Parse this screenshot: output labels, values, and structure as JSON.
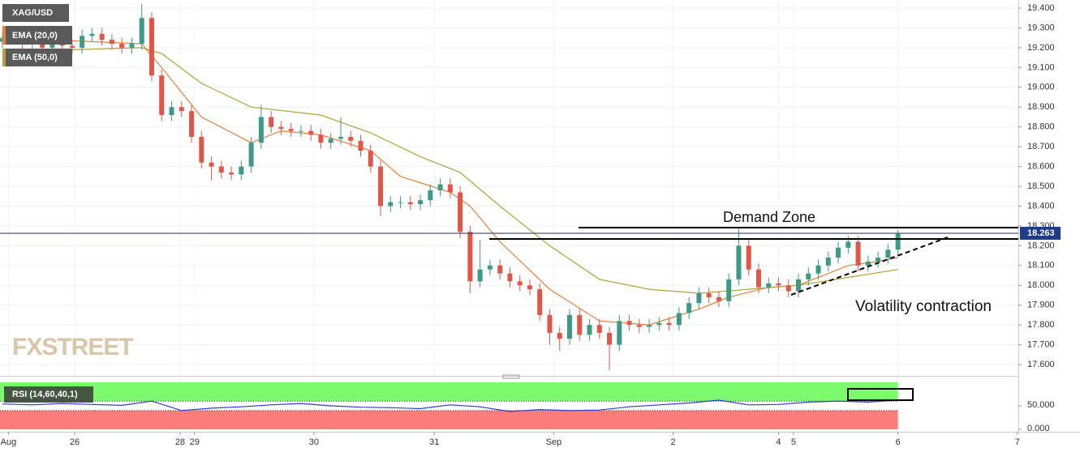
{
  "chart_data": [
    {
      "type": "candlestick",
      "title": "XAG/USD",
      "x": [
        0,
        1,
        2,
        3,
        4,
        5,
        6,
        7,
        8,
        9,
        10,
        11,
        12,
        13,
        14,
        15,
        16,
        17,
        18,
        19,
        20,
        21,
        22,
        23,
        24,
        25,
        26,
        27,
        28,
        29,
        30,
        31,
        32,
        33,
        34,
        35,
        36,
        37,
        38,
        39,
        40,
        41,
        42,
        43,
        44,
        45,
        46,
        47,
        48,
        49,
        50,
        51,
        52,
        53,
        54,
        55,
        56,
        57,
        58,
        59,
        60,
        61,
        62,
        63,
        64,
        65,
        66,
        67,
        68,
        69,
        70,
        71,
        72,
        73,
        74,
        75,
        76,
        77,
        78,
        79,
        80,
        81,
        82,
        83,
        84,
        85,
        86,
        87,
        88,
        89,
        90
      ],
      "open": [
        19.23,
        19.25,
        19.28,
        19.22,
        19.24,
        19.2,
        19.23,
        19.21,
        19.2,
        19.26,
        19.27,
        19.24,
        19.22,
        19.2,
        19.22,
        19.35,
        19.06,
        18.86,
        18.9,
        18.88,
        18.75,
        18.62,
        18.6,
        18.57,
        18.56,
        18.6,
        18.72,
        18.85,
        18.8,
        18.79,
        18.78,
        18.78,
        18.76,
        18.72,
        18.74,
        18.75,
        18.73,
        18.68,
        18.6,
        18.4,
        18.42,
        18.42,
        18.41,
        18.43,
        18.48,
        18.51,
        18.47,
        18.27,
        18.02,
        18.08,
        18.1,
        18.06,
        18.02,
        18.0,
        17.98,
        17.85,
        17.76,
        17.73,
        17.85,
        17.75,
        17.8,
        17.76,
        17.7,
        17.82,
        17.8,
        17.79,
        17.8,
        17.81,
        17.8,
        17.86,
        17.91,
        17.96,
        17.94,
        17.92,
        18.03,
        18.2,
        18.08,
        17.99,
        18.01,
        18.0,
        17.97,
        18.03,
        18.06,
        18.1,
        18.14,
        18.19,
        18.22,
        18.1,
        18.12,
        18.14,
        18.18
      ],
      "high": [
        19.28,
        19.31,
        19.31,
        19.27,
        19.27,
        19.26,
        19.26,
        19.24,
        19.29,
        19.3,
        19.3,
        19.27,
        19.25,
        19.25,
        19.42,
        19.38,
        19.09,
        18.93,
        18.93,
        18.91,
        18.78,
        18.65,
        18.63,
        18.6,
        18.63,
        18.75,
        18.91,
        18.88,
        18.83,
        18.82,
        18.81,
        18.81,
        18.79,
        18.77,
        18.85,
        18.78,
        18.76,
        18.71,
        18.63,
        18.45,
        18.45,
        18.45,
        18.46,
        18.51,
        18.54,
        18.54,
        18.5,
        18.3,
        18.23,
        18.13,
        18.13,
        18.09,
        18.05,
        18.03,
        18.01,
        17.88,
        17.79,
        17.88,
        17.88,
        17.83,
        17.83,
        17.79,
        17.85,
        17.85,
        17.83,
        17.83,
        17.84,
        17.84,
        17.89,
        17.94,
        17.99,
        17.99,
        17.97,
        18.06,
        18.29,
        18.23,
        18.11,
        18.04,
        18.04,
        18.03,
        18.06,
        18.09,
        18.13,
        18.17,
        18.22,
        18.25,
        18.25,
        18.15,
        18.17,
        18.21,
        18.28
      ],
      "low": [
        19.2,
        19.22,
        19.19,
        19.19,
        19.17,
        19.17,
        19.18,
        19.17,
        19.17,
        19.23,
        19.21,
        19.19,
        19.17,
        19.17,
        19.19,
        19.03,
        18.83,
        18.83,
        18.85,
        18.72,
        18.59,
        18.53,
        18.54,
        18.53,
        18.53,
        18.57,
        18.69,
        18.77,
        18.76,
        18.75,
        18.75,
        18.73,
        18.69,
        18.69,
        18.71,
        18.7,
        18.65,
        18.57,
        18.35,
        18.37,
        18.39,
        18.38,
        18.38,
        18.4,
        18.45,
        18.44,
        18.24,
        17.96,
        17.99,
        18.05,
        18.03,
        17.99,
        17.97,
        17.95,
        17.82,
        17.7,
        17.67,
        17.7,
        17.72,
        17.72,
        17.73,
        17.57,
        17.67,
        17.77,
        17.76,
        17.76,
        17.77,
        17.77,
        17.77,
        17.83,
        17.88,
        17.91,
        17.89,
        17.89,
        18.0,
        18.05,
        17.96,
        17.96,
        17.97,
        17.94,
        17.94,
        18.0,
        18.03,
        18.07,
        18.11,
        18.16,
        18.07,
        18.07,
        18.09,
        18.11,
        18.15
      ],
      "close": [
        19.25,
        19.28,
        19.22,
        19.24,
        19.2,
        19.23,
        19.21,
        19.2,
        19.26,
        19.27,
        19.24,
        19.22,
        19.2,
        19.22,
        19.35,
        19.06,
        18.86,
        18.9,
        18.88,
        18.75,
        18.62,
        18.6,
        18.57,
        18.56,
        18.6,
        18.72,
        18.85,
        18.8,
        18.79,
        18.78,
        18.78,
        18.76,
        18.72,
        18.74,
        18.75,
        18.73,
        18.68,
        18.6,
        18.4,
        18.42,
        18.42,
        18.41,
        18.43,
        18.48,
        18.51,
        18.47,
        18.27,
        18.02,
        18.08,
        18.1,
        18.06,
        18.02,
        18.0,
        17.98,
        17.85,
        17.76,
        17.73,
        17.85,
        17.75,
        17.8,
        17.76,
        17.7,
        17.82,
        17.8,
        17.79,
        17.8,
        17.81,
        17.8,
        17.86,
        17.91,
        17.96,
        17.94,
        17.92,
        18.03,
        18.2,
        18.08,
        17.99,
        18.01,
        18.0,
        17.97,
        18.03,
        18.06,
        18.1,
        18.14,
        18.19,
        18.22,
        18.1,
        18.12,
        18.14,
        18.18,
        18.26
      ],
      "up_color": "#3d9a85",
      "down_color": "#e0574a",
      "series": [
        {
          "name": "EMA (20,0)",
          "color": "#e8803a",
          "x": [
            0,
            14,
            16,
            20,
            25,
            28,
            32,
            37,
            40,
            45,
            47,
            50,
            55,
            60,
            65,
            70,
            73,
            77,
            80,
            85,
            88,
            90
          ],
          "values": [
            19.25,
            19.22,
            19.1,
            18.85,
            18.72,
            18.78,
            18.76,
            18.68,
            18.55,
            18.47,
            18.4,
            18.22,
            17.98,
            17.82,
            17.8,
            17.88,
            17.94,
            17.99,
            18.0,
            18.1,
            18.12,
            18.14
          ]
        },
        {
          "name": "EMA (50,0)",
          "color": "#b5a03c",
          "x": [
            0,
            14,
            16,
            20,
            25,
            32,
            37,
            42,
            46,
            50,
            55,
            60,
            65,
            70,
            75,
            80,
            85,
            90
          ],
          "values": [
            19.18,
            19.2,
            19.17,
            19.02,
            18.9,
            18.86,
            18.77,
            18.65,
            18.57,
            18.4,
            18.2,
            18.03,
            17.98,
            17.96,
            17.98,
            18.0,
            18.04,
            18.08
          ]
        }
      ],
      "last_price": 18.263,
      "xlim": [
        -0.25,
        102.1
      ],
      "xticks": [
        {
          "value": 0.6,
          "label": "Aug"
        },
        {
          "value": 7.25,
          "label": "26"
        },
        {
          "value": 17.85,
          "label": "28"
        },
        {
          "value": 19.3,
          "label": "29"
        },
        {
          "value": 31.3,
          "label": "30"
        },
        {
          "value": 43.4,
          "label": "31"
        },
        {
          "value": 55.4,
          "label": "Sep"
        },
        {
          "value": 67.4,
          "label": "2"
        },
        {
          "value": 78,
          "label": "4"
        },
        {
          "value": 79.5,
          "label": "5"
        },
        {
          "value": 90,
          "label": "6"
        },
        {
          "value": 102,
          "label": "7"
        }
      ],
      "ylim": [
        17.551,
        19.441
      ],
      "yticks": [
        {
          "value": 17.6,
          "label": "17.600"
        },
        {
          "value": 17.7,
          "label": "17.700"
        },
        {
          "value": 17.8,
          "label": "17.800"
        },
        {
          "value": 17.9,
          "label": "17.900"
        },
        {
          "value": 18.0,
          "label": "18.000"
        },
        {
          "value": 18.1,
          "label": "18.100"
        },
        {
          "value": 18.2,
          "label": "18.200"
        },
        {
          "value": 18.3,
          "label": "18.300"
        },
        {
          "value": 18.4,
          "label": "18.400"
        },
        {
          "value": 18.5,
          "label": "18.500"
        },
        {
          "value": 18.6,
          "label": "18.600"
        },
        {
          "value": 18.7,
          "label": "18.700"
        },
        {
          "value": 18.8,
          "label": "18.800"
        },
        {
          "value": 18.9,
          "label": "18.900"
        },
        {
          "value": 19.0,
          "label": "19.000"
        },
        {
          "value": 19.1,
          "label": "19.100"
        },
        {
          "value": 19.2,
          "label": "19.200"
        },
        {
          "value": 19.3,
          "label": "19.300"
        },
        {
          "value": 19.4,
          "label": "19.400"
        }
      ],
      "grid": true,
      "annotations": [
        "Demand Zone",
        "Volatility contraction"
      ],
      "watermark": "FXSTREET"
    },
    {
      "type": "line",
      "title": "RSI (14,60,40,1)",
      "x": [
        0,
        3,
        6,
        9,
        12,
        15,
        18,
        21,
        24,
        27,
        30,
        33,
        36,
        39,
        42,
        45,
        48,
        51,
        54,
        57,
        60,
        63,
        66,
        69,
        72,
        75,
        78,
        81,
        84,
        87,
        90
      ],
      "values": [
        54,
        52,
        55,
        53,
        51,
        60,
        40,
        45,
        48,
        52,
        55,
        50,
        47,
        46,
        44,
        52,
        48,
        38,
        42,
        40,
        41,
        48,
        52,
        56,
        62,
        52,
        53,
        58,
        60,
        58,
        62
      ],
      "color": "#2b3bd6",
      "ylim": [
        0,
        100
      ],
      "yticks": [
        {
          "value": 0,
          "label": "0.000"
        },
        {
          "value": 50,
          "label": "50.000"
        }
      ],
      "upper_band": 60,
      "lower_band": 40,
      "upper_color": "#7dfb6e",
      "lower_color": "#fb7c7a"
    }
  ]
}
